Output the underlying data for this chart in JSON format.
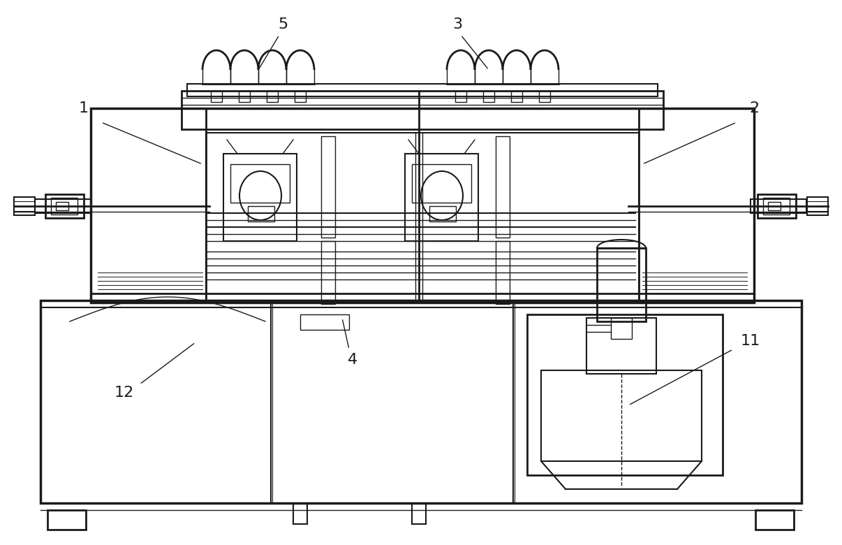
{
  "bg_color": "#ffffff",
  "line_color": "#1a1a1a",
  "figsize": [
    12.06,
    7.8
  ],
  "dpi": 100
}
